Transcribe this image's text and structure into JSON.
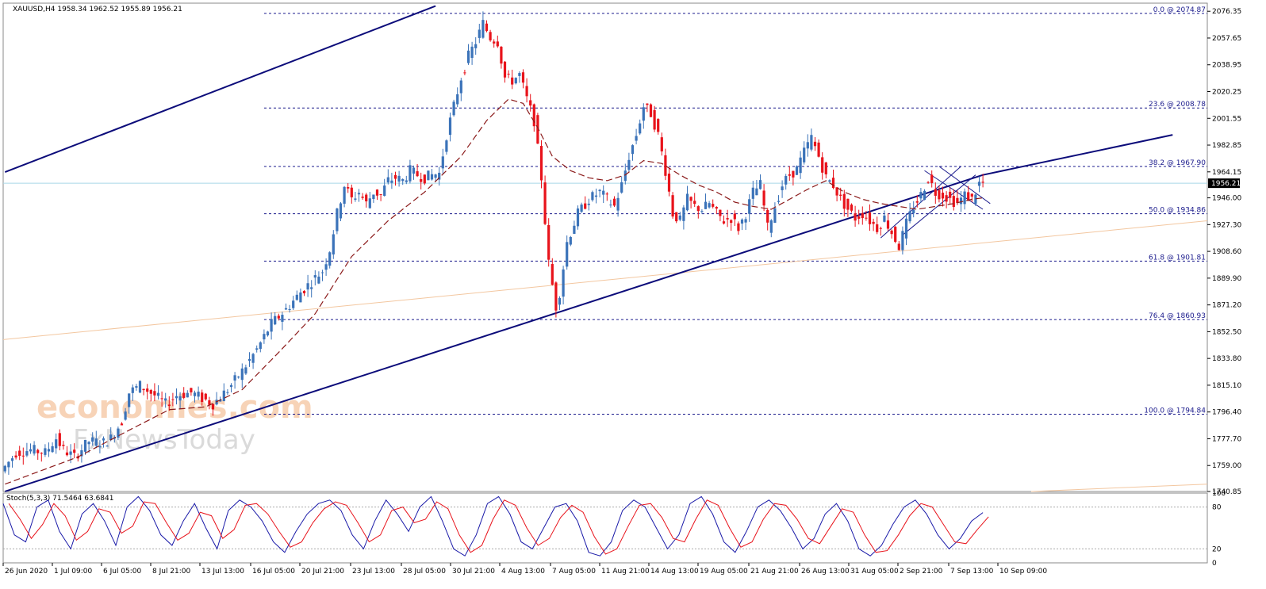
{
  "chart_data": {
    "type": "candlestick",
    "title": "XAUUSD,H4  1958.34 1962.52 1955.89 1956.21",
    "symbol": "XAUUSD",
    "timeframe": "H4",
    "ohlc_last": {
      "open": 1958.34,
      "high": 1962.52,
      "low": 1955.89,
      "close": 1956.21
    },
    "current_price_label": "1956.21",
    "ylim": [
      1740.85,
      2082.0
    ],
    "y_ticks": [
      "2076.35",
      "2057.65",
      "2038.95",
      "2020.25",
      "2001.55",
      "1982.85",
      "1964.15",
      "1946.00",
      "1927.30",
      "1908.60",
      "1889.90",
      "1871.20",
      "1852.50",
      "1833.80",
      "1815.10",
      "1796.40",
      "1777.70",
      "1759.00",
      "1740.85"
    ],
    "x_ticks": [
      "26 Jun 2020",
      "1 Jul 09:00",
      "6 Jul 05:00",
      "8 Jul 21:00",
      "13 Jul 13:00",
      "16 Jul 05:00",
      "20 Jul 21:00",
      "23 Jul 13:00",
      "28 Jul 05:00",
      "30 Jul 21:00",
      "4 Aug 13:00",
      "7 Aug 05:00",
      "11 Aug 21:00",
      "14 Aug 13:00",
      "19 Aug 05:00",
      "21 Aug 21:00",
      "26 Aug 13:00",
      "31 Aug 05:00",
      "2 Sep 21:00",
      "7 Sep 13:00",
      "10 Sep 09:00"
    ],
    "fibonacci": [
      {
        "label": "0.0 @ 2074.87",
        "value": 2074.87
      },
      {
        "label": "23.6 @ 2008.78",
        "value": 2008.78
      },
      {
        "label": "38.2 @ 1967.90",
        "value": 1967.9
      },
      {
        "label": "50.0 @ 1934.86",
        "value": 1934.86
      },
      {
        "label": "61.8 @ 1901.81",
        "value": 1901.81
      },
      {
        "label": "76.4 @ 1860.93",
        "value": 1860.93
      },
      {
        "label": "100.0 @ 1794.84",
        "value": 1794.84
      }
    ],
    "price_path": [
      [
        0,
        1755
      ],
      [
        4,
        1768
      ],
      [
        8,
        1770
      ],
      [
        12,
        1768
      ],
      [
        15,
        1778
      ],
      [
        17,
        1770
      ],
      [
        20,
        1765
      ],
      [
        24,
        1776
      ],
      [
        28,
        1775
      ],
      [
        30,
        1778
      ],
      [
        33,
        1790
      ],
      [
        35,
        1810
      ],
      [
        38,
        1815
      ],
      [
        42,
        1808
      ],
      [
        45,
        1802
      ],
      [
        48,
        1808
      ],
      [
        52,
        1810
      ],
      [
        55,
        1806
      ],
      [
        58,
        1802
      ],
      [
        62,
        1812
      ],
      [
        66,
        1825
      ],
      [
        70,
        1840
      ],
      [
        74,
        1858
      ],
      [
        78,
        1868
      ],
      [
        82,
        1880
      ],
      [
        86,
        1890
      ],
      [
        88,
        1895
      ],
      [
        90,
        1910
      ],
      [
        92,
        1935
      ],
      [
        94,
        1955
      ],
      [
        96,
        1945
      ],
      [
        98,
        1950
      ],
      [
        100,
        1942
      ],
      [
        102,
        1950
      ],
      [
        104,
        1948
      ],
      [
        106,
        1958
      ],
      [
        108,
        1960
      ],
      [
        110,
        1958
      ],
      [
        112,
        1965
      ],
      [
        114,
        1962
      ],
      [
        116,
        1960
      ],
      [
        118,
        1962
      ],
      [
        120,
        1963
      ],
      [
        122,
        1990
      ],
      [
        124,
        2010
      ],
      [
        126,
        2030
      ],
      [
        128,
        2045
      ],
      [
        130,
        2055
      ],
      [
        132,
        2068
      ],
      [
        134,
        2058
      ],
      [
        136,
        2055
      ],
      [
        138,
        2030
      ],
      [
        140,
        2028
      ],
      [
        142,
        2032
      ],
      [
        144,
        2015
      ],
      [
        146,
        2000
      ],
      [
        148,
        1960
      ],
      [
        150,
        1900
      ],
      [
        152,
        1870
      ],
      [
        153,
        1880
      ],
      [
        155,
        1915
      ],
      [
        158,
        1935
      ],
      [
        161,
        1945
      ],
      [
        164,
        1950
      ],
      [
        166,
        1945
      ],
      [
        168,
        1940
      ],
      [
        170,
        1955
      ],
      [
        172,
        1975
      ],
      [
        174,
        1990
      ],
      [
        176,
        2010
      ],
      [
        178,
        2005
      ],
      [
        180,
        1990
      ],
      [
        182,
        1965
      ],
      [
        184,
        1935
      ],
      [
        186,
        1930
      ],
      [
        188,
        1945
      ],
      [
        190,
        1940
      ],
      [
        192,
        1938
      ],
      [
        194,
        1942
      ],
      [
        196,
        1935
      ],
      [
        198,
        1930
      ],
      [
        200,
        1932
      ],
      [
        202,
        1925
      ],
      [
        204,
        1935
      ],
      [
        206,
        1950
      ],
      [
        208,
        1955
      ],
      [
        210,
        1925
      ],
      [
        212,
        1940
      ],
      [
        214,
        1955
      ],
      [
        216,
        1962
      ],
      [
        218,
        1966
      ],
      [
        220,
        1978
      ],
      [
        222,
        1988
      ],
      [
        224,
        1975
      ],
      [
        226,
        1960
      ],
      [
        228,
        1955
      ],
      [
        230,
        1945
      ],
      [
        232,
        1938
      ],
      [
        234,
        1932
      ],
      [
        236,
        1935
      ],
      [
        238,
        1930
      ],
      [
        240,
        1925
      ],
      [
        242,
        1932
      ],
      [
        244,
        1922
      ],
      [
        246,
        1912
      ],
      [
        248,
        1928
      ],
      [
        250,
        1940
      ],
      [
        252,
        1948
      ],
      [
        254,
        1960
      ],
      [
        256,
        1950
      ],
      [
        258,
        1948
      ],
      [
        260,
        1945
      ],
      [
        262,
        1942
      ],
      [
        264,
        1948
      ],
      [
        266,
        1945
      ],
      [
        268,
        1956
      ]
    ],
    "moving_average": [
      [
        0,
        1746
      ],
      [
        20,
        1765
      ],
      [
        35,
        1785
      ],
      [
        45,
        1798
      ],
      [
        55,
        1800
      ],
      [
        65,
        1812
      ],
      [
        75,
        1838
      ],
      [
        85,
        1865
      ],
      [
        95,
        1905
      ],
      [
        105,
        1930
      ],
      [
        115,
        1950
      ],
      [
        125,
        1975
      ],
      [
        132,
        2000
      ],
      [
        138,
        2015
      ],
      [
        142,
        2012
      ],
      [
        146,
        1995
      ],
      [
        150,
        1975
      ],
      [
        155,
        1965
      ],
      [
        160,
        1960
      ],
      [
        165,
        1958
      ],
      [
        170,
        1962
      ],
      [
        175,
        1972
      ],
      [
        180,
        1970
      ],
      [
        185,
        1962
      ],
      [
        190,
        1955
      ],
      [
        195,
        1950
      ],
      [
        200,
        1943
      ],
      [
        205,
        1940
      ],
      [
        210,
        1938
      ],
      [
        215,
        1945
      ],
      [
        220,
        1952
      ],
      [
        225,
        1958
      ],
      [
        230,
        1950
      ],
      [
        235,
        1945
      ],
      [
        240,
        1942
      ],
      [
        245,
        1940
      ],
      [
        250,
        1938
      ],
      [
        255,
        1940
      ],
      [
        260,
        1942
      ],
      [
        265,
        1945
      ],
      [
        268,
        1946
      ]
    ],
    "trendlines": [
      {
        "name": "channel-lower",
        "points": [
          [
            0,
            1740.9
          ],
          [
            268,
            1962
          ]
        ]
      },
      {
        "name": "channel-upper",
        "points": [
          [
            0,
            1964
          ],
          [
            118,
            2080
          ]
        ]
      },
      {
        "name": "channel-lower-extension",
        "points": [
          [
            268,
            1962
          ],
          [
            320,
            1990
          ]
        ]
      }
    ],
    "stochastic": {
      "label": "Stoch(5,3,3) 71.5464 63.6841",
      "k": 71.5464,
      "d": 63.6841,
      "levels": [
        20,
        80
      ],
      "y_ticks": [
        "100",
        "80",
        "20",
        "0"
      ],
      "k_path": [
        85,
        40,
        30,
        80,
        90,
        45,
        20,
        70,
        85,
        60,
        25,
        80,
        95,
        75,
        40,
        25,
        60,
        85,
        50,
        20,
        75,
        90,
        80,
        60,
        30,
        15,
        45,
        70,
        85,
        90,
        75,
        40,
        20,
        60,
        90,
        70,
        45,
        80,
        95,
        60,
        20,
        10,
        40,
        85,
        95,
        70,
        30,
        20,
        50,
        80,
        85,
        60,
        15,
        10,
        30,
        75,
        90,
        80,
        50,
        20,
        40,
        85,
        95,
        70,
        30,
        15,
        45,
        80,
        90,
        75,
        50,
        20,
        35,
        70,
        85,
        60,
        20,
        10,
        25,
        55,
        80,
        90,
        70,
        40,
        20,
        35,
        60,
        72
      ]
    },
    "watermark": [
      "economies.com",
      "FxNewsToday"
    ]
  }
}
